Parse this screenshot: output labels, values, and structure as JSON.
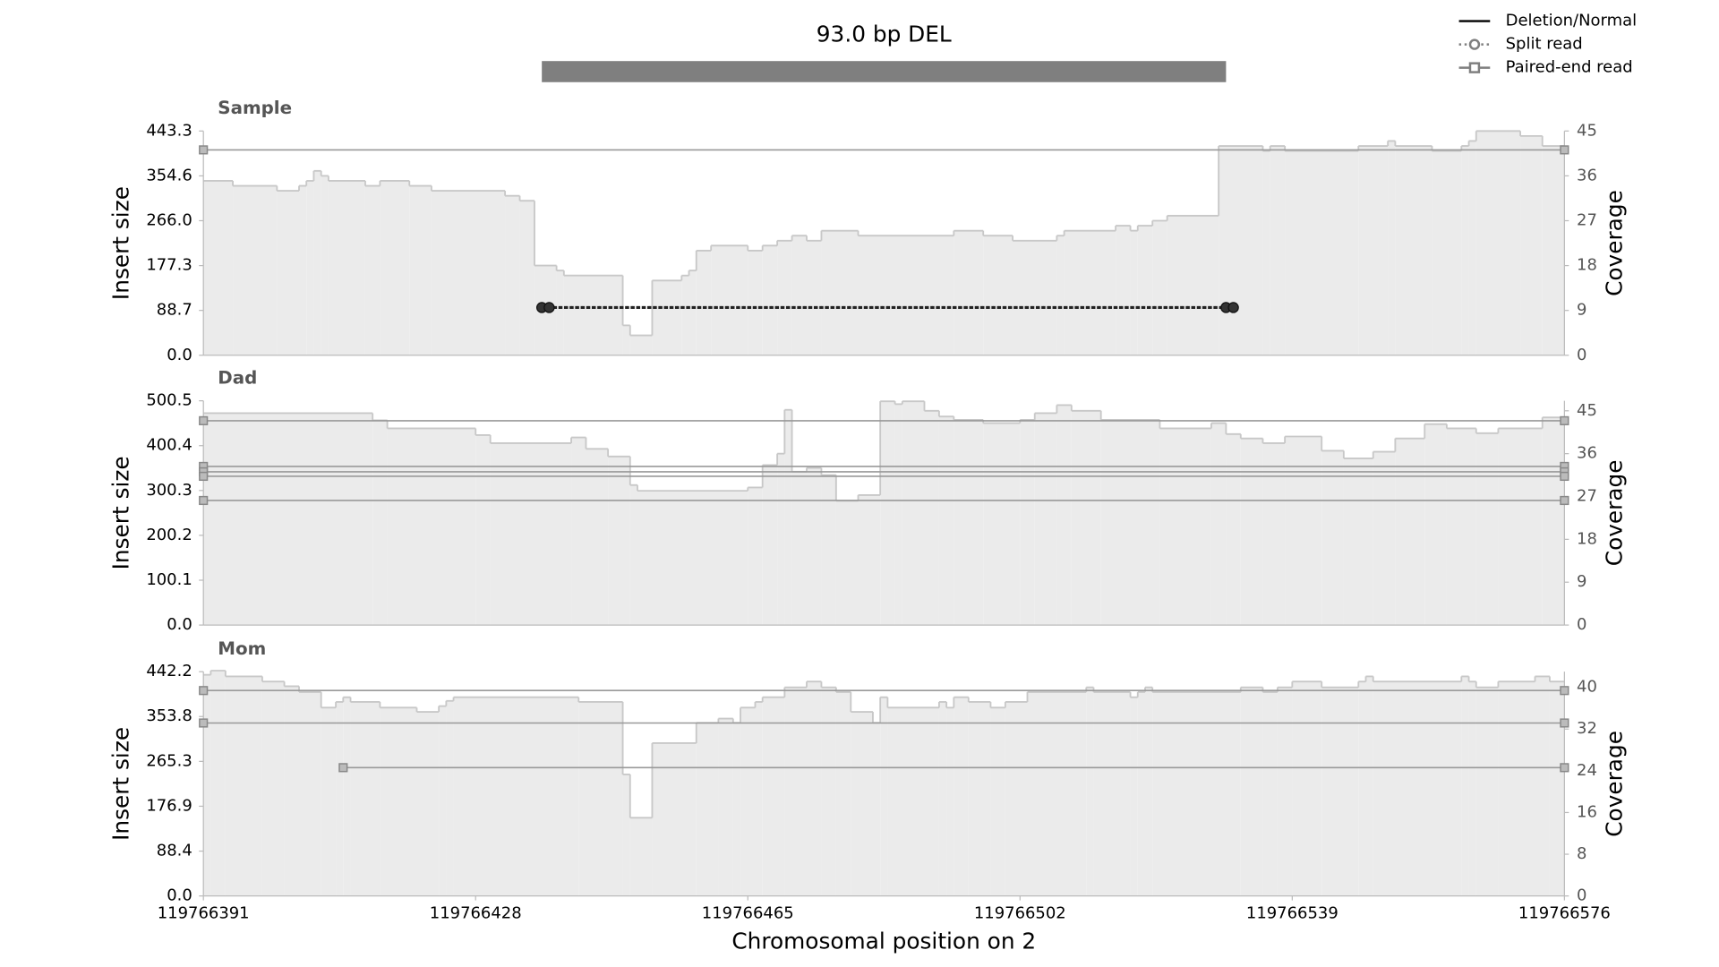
{
  "title": "93.0 bp DEL",
  "deletion": {
    "start": 119766437,
    "end": 119766530,
    "color": "#7f7f7f"
  },
  "legend": [
    {
      "name": "Deletion/Normal",
      "marker": "line",
      "color": "#000000"
    },
    {
      "name": "Split read",
      "marker": "circle",
      "color": "#7f7f7f"
    },
    {
      "name": "Paired-end read",
      "marker": "square",
      "color": "#7f7f7f"
    }
  ],
  "chart_data": [
    {
      "type": "coverage",
      "title": "Sample",
      "ylabel": "Insert size",
      "y2label": "Coverage",
      "xlim": [
        119766391,
        119766576
      ],
      "ylim": [
        0,
        443.3
      ],
      "yticks": [
        {
          "value": 0,
          "label": "0.0"
        },
        88.7,
        177.3,
        {
          "value": 266,
          "label": "266.0"
        },
        354.6,
        443.3
      ],
      "y2lim": [
        0,
        45
      ],
      "y2ticks": [
        0,
        9,
        18,
        27,
        36,
        45
      ],
      "coverage": {
        "axis": "y2",
        "color": "#ebebeb",
        "edge_color": "#c8c8c8",
        "bins": [
          119766391,
          119766395,
          119766401,
          119766404,
          119766405,
          119766406,
          119766407,
          119766408,
          119766413,
          119766415,
          119766419,
          119766422,
          119766432,
          119766434,
          119766436,
          119766439,
          119766440,
          119766448,
          119766449,
          119766452,
          119766456,
          119766457,
          119766458,
          119766460,
          119766465,
          119766467,
          119766469,
          119766471,
          119766473,
          119766475,
          119766480,
          119766493,
          119766497,
          119766501,
          119766507,
          119766508,
          119766515,
          119766517,
          119766518,
          119766520,
          119766522,
          119766529,
          119766535,
          119766536,
          119766538,
          119766548,
          119766552,
          119766553,
          119766558,
          119766562,
          119766563,
          119766564,
          119766570,
          119766573,
          119766576
        ],
        "values": [
          35,
          34,
          33,
          34,
          35,
          37,
          36,
          35,
          34,
          35,
          34,
          33,
          32,
          31,
          18,
          17,
          16,
          6,
          4,
          15,
          16,
          17,
          21,
          22,
          21,
          22,
          23,
          24,
          23,
          25,
          24,
          25,
          24,
          23,
          24,
          25,
          26,
          25,
          26,
          27,
          28,
          42,
          41,
          42,
          41,
          42,
          43,
          42,
          41,
          42,
          43,
          45,
          44,
          42
        ]
      },
      "paired_color": "#999999",
      "paired_end_reads": [
        {
          "start": 119766391,
          "end": 119766576,
          "insert_size": 406
        }
      ],
      "split_color": "#222222",
      "split_reads": [
        {
          "start": 119766437,
          "end": 119766530,
          "insert_size": 94.4
        },
        {
          "start": 119766438,
          "end": 119766531,
          "insert_size": 94.4
        }
      ]
    },
    {
      "type": "coverage",
      "title": "Dad",
      "ylabel": "Insert size",
      "y2label": "Coverage",
      "xlim": [
        119766391,
        119766576
      ],
      "ylim": [
        0,
        500.5
      ],
      "yticks": [
        {
          "value": 0,
          "label": "0.0"
        },
        100.1,
        200.2,
        300.3,
        400.4,
        500.5
      ],
      "y2lim": [
        0,
        47.1
      ],
      "y2ticks": [
        0,
        9,
        18,
        27,
        36,
        45
      ],
      "coverage": {
        "axis": "y2",
        "color": "#ebebeb",
        "edge_color": "#c8c8c8",
        "bins": [
          119766391,
          119766414,
          119766416,
          119766428,
          119766430,
          119766441,
          119766443,
          119766446,
          119766449,
          119766450,
          119766465,
          119766467,
          119766469,
          119766470,
          119766471,
          119766473,
          119766475,
          119766477,
          119766480,
          119766483,
          119766485,
          119766486,
          119766489,
          119766491,
          119766493,
          119766497,
          119766502,
          119766504,
          119766507,
          119766509,
          119766513,
          119766521,
          119766528,
          119766530,
          119766532,
          119766535,
          119766538,
          119766543,
          119766546,
          119766550,
          119766553,
          119766557,
          119766560,
          119766564,
          119766567,
          119766573,
          119766576
        ],
        "values": [
          44.5,
          43,
          41.3,
          39.9,
          38.2,
          39.4,
          37,
          35.4,
          29.4,
          28.2,
          28.9,
          33.6,
          36,
          45.2,
          32.2,
          33,
          31.5,
          26.1,
          27.3,
          47,
          46.4,
          47,
          45,
          43.8,
          43.1,
          42.4,
          43.1,
          44.5,
          46.2,
          45,
          43.1,
          41.3,
          42.4,
          40.1,
          39.2,
          38.2,
          39.6,
          36.6,
          35,
          36.4,
          39.2,
          42.2,
          41.3,
          40.3,
          41.3,
          43.6
        ]
      },
      "paired_color": "#999999",
      "paired_end_reads": [
        {
          "start": 119766391,
          "end": 119766576,
          "insert_size": 456
        },
        {
          "start": 119766391,
          "end": 119766576,
          "insert_size": 354
        },
        {
          "start": 119766391,
          "end": 119766576,
          "insert_size": 342
        },
        {
          "start": 119766391,
          "end": 119766576,
          "insert_size": 332
        },
        {
          "start": 119766391,
          "end": 119766576,
          "insert_size": 278
        }
      ],
      "split_color": "#222222",
      "split_reads": []
    },
    {
      "type": "coverage",
      "title": "Mom",
      "ylabel": "Insert size",
      "y2label": "Coverage",
      "xlabel": "Chromosomal position on 2",
      "xlim": [
        119766391,
        119766576
      ],
      "xticks": [
        119766391,
        119766428,
        119766465,
        119766502,
        119766539,
        119766576
      ],
      "ylim": [
        0,
        442.2
      ],
      "yticks": [
        {
          "value": 0,
          "label": "0.0"
        },
        88.4,
        176.9,
        265.3,
        353.8,
        442.2
      ],
      "y2lim": [
        0,
        43
      ],
      "y2ticks": [
        0,
        8,
        16,
        24,
        32,
        40
      ],
      "coverage": {
        "axis": "y2",
        "color": "#ebebeb",
        "edge_color": "#c8c8c8",
        "bins": [
          119766391,
          119766392,
          119766394,
          119766399,
          119766402,
          119766404,
          119766407,
          119766409,
          119766410,
          119766411,
          119766415,
          119766420,
          119766423,
          119766424,
          119766425,
          119766442,
          119766448,
          119766449,
          119766452,
          119766458,
          119766461,
          119766463,
          119766464,
          119766466,
          119766467,
          119766470,
          119766473,
          119766475,
          119766477,
          119766479,
          119766482,
          119766483,
          119766484,
          119766491,
          119766492,
          119766493,
          119766495,
          119766498,
          119766500,
          119766503,
          119766511,
          119766512,
          119766517,
          119766518,
          119766519,
          119766520,
          119766532,
          119766535,
          119766537,
          119766539,
          119766543,
          119766548,
          119766549,
          119766550,
          119766562,
          119766563,
          119766564,
          119766567,
          119766572,
          119766574,
          119766576
        ],
        "values": [
          42.4,
          43.2,
          42.1,
          41.1,
          40.2,
          39.1,
          36.1,
          37.2,
          38.1,
          37.2,
          36.1,
          35.3,
          36.4,
          37.4,
          38.1,
          37.2,
          23.3,
          15,
          29.3,
          33.2,
          34,
          33.2,
          36.1,
          37.2,
          38.1,
          40,
          41.1,
          40,
          39.1,
          35.3,
          33.2,
          38.1,
          36.1,
          37.2,
          36.1,
          38.1,
          37.2,
          36.1,
          37.2,
          39.1,
          40,
          39.1,
          38.1,
          39.1,
          40,
          39.1,
          40,
          39.1,
          40,
          41.1,
          40,
          41.1,
          42.1,
          41.1,
          42.1,
          41.1,
          40,
          41.1,
          42.1,
          41.1
        ]
      },
      "paired_color": "#999999",
      "paired_end_reads": [
        {
          "start": 119766391,
          "end": 119766576,
          "insert_size": 405
        },
        {
          "start": 119766391,
          "end": 119766576,
          "insert_size": 341
        },
        {
          "start": 119766410,
          "end": 119766576,
          "insert_size": 253
        }
      ],
      "split_color": "#222222",
      "split_reads": []
    }
  ]
}
